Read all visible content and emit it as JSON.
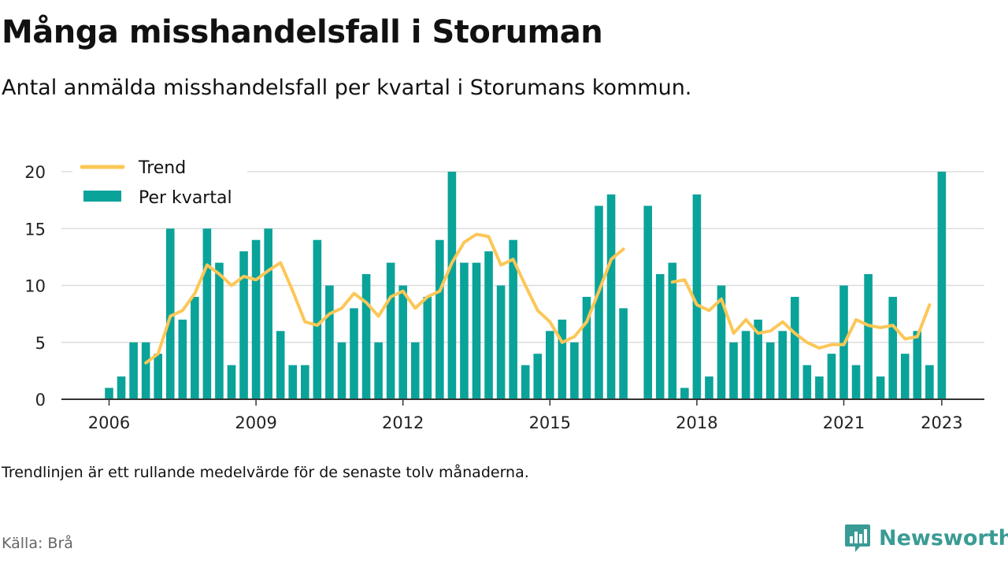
{
  "title": "Många misshandelsfall i Storuman",
  "subtitle": "Antal anmälda misshandelsfall per kvartal i Storumans kommun.",
  "note": "Trendlinjen är ett rullande medelvärde för de senaste tolv månaderna.",
  "source": "Källa: Brå",
  "brand": "Newsworthy",
  "colors": {
    "bar": "#0aa39a",
    "trend": "#fcc757",
    "brand": "#3a9b94",
    "axis": "#333333",
    "grid": "#dddddd"
  },
  "chart_data": {
    "type": "bar",
    "x_start_year": 2006,
    "x_tick_labels": [
      "2006",
      "2009",
      "2012",
      "2015",
      "2018",
      "2021",
      "2023"
    ],
    "y_ticks": [
      0,
      5,
      10,
      15,
      20
    ],
    "ylim": [
      0,
      20
    ],
    "grid": true,
    "legend_position": "top-left",
    "series": [
      {
        "name": "Per kvartal",
        "type": "bar",
        "values": [
          1,
          2,
          5,
          5,
          4,
          15,
          7,
          9,
          15,
          12,
          3,
          13,
          14,
          15,
          6,
          3,
          3,
          14,
          10,
          5,
          8,
          11,
          5,
          12,
          10,
          5,
          9,
          14,
          20,
          12,
          12,
          13,
          10,
          14,
          3,
          4,
          6,
          7,
          5,
          9,
          17,
          18,
          8,
          null,
          17,
          11,
          12,
          1,
          18,
          2,
          10,
          5,
          6,
          7,
          5,
          6,
          9,
          3,
          2,
          4,
          10,
          3,
          11,
          2,
          9,
          4,
          6,
          3,
          20
        ]
      },
      {
        "name": "Trend",
        "type": "line",
        "values": [
          null,
          null,
          null,
          3.2,
          4.0,
          7.3,
          7.8,
          9.3,
          11.8,
          11.0,
          10.0,
          10.8,
          10.5,
          11.3,
          12.0,
          9.5,
          6.8,
          6.5,
          7.5,
          8.0,
          9.3,
          8.5,
          7.3,
          9.0,
          9.5,
          8.0,
          9.0,
          9.5,
          12.0,
          13.8,
          14.5,
          14.3,
          11.8,
          12.3,
          10.0,
          7.8,
          6.8,
          5.0,
          5.5,
          6.8,
          9.5,
          12.3,
          13.2,
          null,
          null,
          null,
          10.3,
          10.5,
          8.3,
          7.8,
          8.8,
          5.8,
          7.0,
          5.8,
          6.0,
          6.8,
          5.8,
          5.0,
          4.5,
          4.8,
          4.8,
          7.0,
          6.5,
          6.3,
          6.5,
          5.3,
          5.5,
          8.3,
          null
        ]
      }
    ]
  }
}
